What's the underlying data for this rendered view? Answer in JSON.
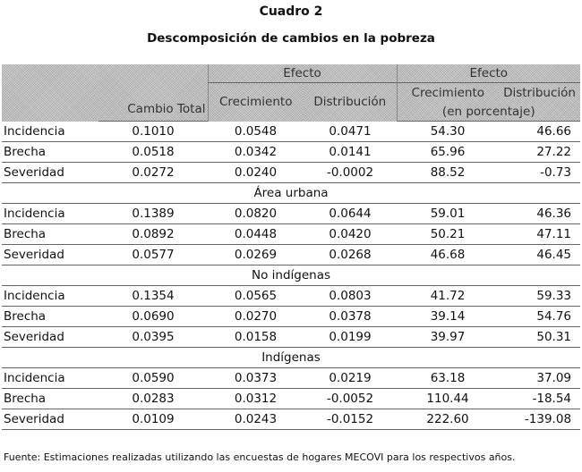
{
  "title": "Cuadro 2",
  "subtitle": "Descomposición de cambios en la pobreza",
  "header": {
    "cambio_total": "Cambio Total",
    "efecto_1": "Efecto",
    "efecto_2": "Efecto",
    "crecimiento_1": "Crecimiento",
    "distribucion_1": "Distribución",
    "crecimiento_2": "Crecimiento",
    "distribucion_2": "Distribución",
    "en_porcentaje": "(en porcentaje)"
  },
  "sections": [
    {
      "name": "",
      "rows": [
        {
          "label": "Incidencia",
          "cambio_total": "0.1010",
          "crec": "0.0548",
          "dist": "0.0471",
          "crec_pct": "54.30",
          "dist_pct": "46.66"
        },
        {
          "label": "Brecha",
          "cambio_total": "0.0518",
          "crec": "0.0342",
          "dist": "0.0141",
          "crec_pct": "65.96",
          "dist_pct": "27.22"
        },
        {
          "label": "Severidad",
          "cambio_total": "0.0272",
          "crec": "0.0240",
          "dist": "-0.0002",
          "crec_pct": "88.52",
          "dist_pct": "-0.73"
        }
      ]
    },
    {
      "name": "Área urbana",
      "rows": [
        {
          "label": "Incidencia",
          "cambio_total": "0.1389",
          "crec": "0.0820",
          "dist": "0.0644",
          "crec_pct": "59.01",
          "dist_pct": "46.36"
        },
        {
          "label": "Brecha",
          "cambio_total": "0.0892",
          "crec": "0.0448",
          "dist": "0.0420",
          "crec_pct": "50.21",
          "dist_pct": "47.11"
        },
        {
          "label": "Severidad",
          "cambio_total": "0.0577",
          "crec": "0.0269",
          "dist": "0.0268",
          "crec_pct": "46.68",
          "dist_pct": "46.45"
        }
      ]
    },
    {
      "name": "No indígenas",
      "rows": [
        {
          "label": "Incidencia",
          "cambio_total": "0.1354",
          "crec": "0.0565",
          "dist": "0.0803",
          "crec_pct": "41.72",
          "dist_pct": "59.33"
        },
        {
          "label": "Brecha",
          "cambio_total": "0.0690",
          "crec": "0.0270",
          "dist": "0.0378",
          "crec_pct": "39.14",
          "dist_pct": "54.76"
        },
        {
          "label": "Severidad",
          "cambio_total": "0.0395",
          "crec": "0.0158",
          "dist": "0.0199",
          "crec_pct": "39.97",
          "dist_pct": "50.31"
        }
      ]
    },
    {
      "name": "Indígenas",
      "rows": [
        {
          "label": "Incidencia",
          "cambio_total": "0.0590",
          "crec": "0.0373",
          "dist": "0.0219",
          "crec_pct": "63.18",
          "dist_pct": "37.09"
        },
        {
          "label": "Brecha",
          "cambio_total": "0.0283",
          "crec": "0.0312",
          "dist": "-0.0052",
          "crec_pct": "110.44",
          "dist_pct": "-18.54"
        },
        {
          "label": "Severidad",
          "cambio_total": "0.0109",
          "crec": "0.0243",
          "dist": "-0.0152",
          "crec_pct": "222.60",
          "dist_pct": "-139.08"
        }
      ]
    }
  ],
  "footnote": "Fuente: Estimaciones realizadas utilizando las encuestas de hogares MECOVI para los respectivos años."
}
